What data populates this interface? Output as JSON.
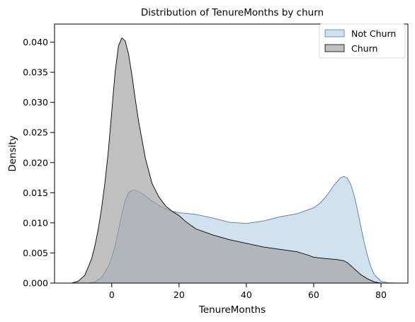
{
  "chart_data": {
    "type": "area",
    "title": "Distribution of TenureMonths by churn",
    "xlabel": "TenureMonths",
    "ylabel": "Density",
    "xlim": [
      -17,
      88
    ],
    "ylim": [
      0,
      0.043
    ],
    "x_ticks": [
      0,
      20,
      40,
      60,
      80
    ],
    "y_ticks": [
      0.0,
      0.005,
      0.01,
      0.015,
      0.02,
      0.025,
      0.03,
      0.035,
      0.04
    ],
    "x_tick_labels": [
      "0",
      "20",
      "40",
      "60",
      "80"
    ],
    "y_tick_labels": [
      "0.000",
      "0.005",
      "0.010",
      "0.015",
      "0.020",
      "0.025",
      "0.030",
      "0.035",
      "0.040"
    ],
    "grid": false,
    "legend_position": "top-right",
    "series": [
      {
        "name": "Not Churn",
        "fill": "#c6d9ea",
        "stroke": "#4a7fb0",
        "points": [
          [
            -7,
            0.0
          ],
          [
            -5,
            0.0002
          ],
          [
            -3,
            0.0009
          ],
          [
            -1,
            0.0028
          ],
          [
            0,
            0.0042
          ],
          [
            1,
            0.0062
          ],
          [
            2,
            0.0088
          ],
          [
            3,
            0.0115
          ],
          [
            4,
            0.0137
          ],
          [
            5,
            0.015
          ],
          [
            6,
            0.0154
          ],
          [
            7,
            0.0154
          ],
          [
            8,
            0.0152
          ],
          [
            10,
            0.0145
          ],
          [
            12,
            0.0136
          ],
          [
            15,
            0.0126
          ],
          [
            18,
            0.0119
          ],
          [
            20,
            0.0117
          ],
          [
            25,
            0.0114
          ],
          [
            30,
            0.0108
          ],
          [
            35,
            0.0101
          ],
          [
            40,
            0.0099
          ],
          [
            45,
            0.0103
          ],
          [
            50,
            0.011
          ],
          [
            55,
            0.0115
          ],
          [
            60,
            0.0125
          ],
          [
            62,
            0.0133
          ],
          [
            64,
            0.0146
          ],
          [
            66,
            0.0162
          ],
          [
            68,
            0.0175
          ],
          [
            69,
            0.0177
          ],
          [
            70,
            0.0174
          ],
          [
            71,
            0.0164
          ],
          [
            72,
            0.0146
          ],
          [
            73,
            0.0122
          ],
          [
            74,
            0.0094
          ],
          [
            75,
            0.0068
          ],
          [
            76,
            0.0045
          ],
          [
            77,
            0.0027
          ],
          [
            78,
            0.0014
          ],
          [
            80,
            0.0003
          ],
          [
            82,
            5e-05
          ],
          [
            85,
            0.0
          ]
        ]
      },
      {
        "name": "Churn",
        "fill": "#9e9e9e",
        "stroke": "#000000",
        "points": [
          [
            -12,
            0.0
          ],
          [
            -10,
            0.0003
          ],
          [
            -8,
            0.0013
          ],
          [
            -6,
            0.004
          ],
          [
            -5,
            0.0062
          ],
          [
            -4,
            0.009
          ],
          [
            -3,
            0.0125
          ],
          [
            -2,
            0.0168
          ],
          [
            -1,
            0.022
          ],
          [
            0,
            0.0285
          ],
          [
            1,
            0.035
          ],
          [
            2,
            0.0394
          ],
          [
            3,
            0.0407
          ],
          [
            4,
            0.0402
          ],
          [
            5,
            0.038
          ],
          [
            6,
            0.0345
          ],
          [
            7,
            0.0305
          ],
          [
            8,
            0.0268
          ],
          [
            10,
            0.0207
          ],
          [
            12,
            0.0165
          ],
          [
            14,
            0.0143
          ],
          [
            16,
            0.0128
          ],
          [
            18,
            0.0119
          ],
          [
            20,
            0.0112
          ],
          [
            22,
            0.0102
          ],
          [
            25,
            0.009
          ],
          [
            30,
            0.008
          ],
          [
            35,
            0.0072
          ],
          [
            40,
            0.0066
          ],
          [
            45,
            0.006
          ],
          [
            50,
            0.0056
          ],
          [
            55,
            0.0052
          ],
          [
            58,
            0.0047
          ],
          [
            60,
            0.0043
          ],
          [
            63,
            0.0041
          ],
          [
            65,
            0.004
          ],
          [
            67,
            0.0039
          ],
          [
            69,
            0.0037
          ],
          [
            70,
            0.0034
          ],
          [
            72,
            0.0024
          ],
          [
            74,
            0.0014
          ],
          [
            76,
            0.0007
          ],
          [
            78,
            0.0002
          ],
          [
            80,
            0.0
          ]
        ]
      }
    ]
  }
}
